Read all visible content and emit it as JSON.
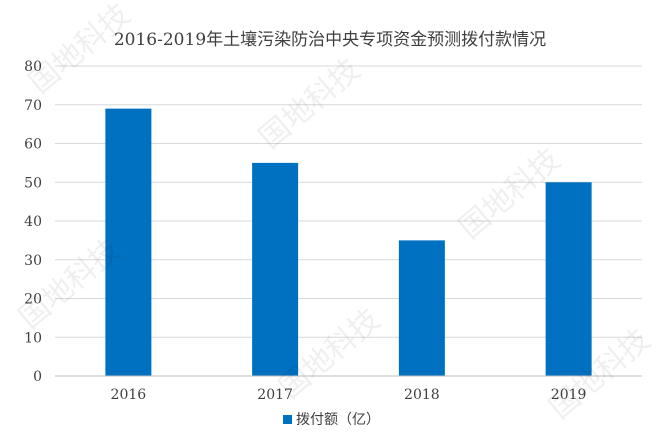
{
  "chart_data": {
    "type": "bar",
    "title": "2016-2019年土壤污染防治中央专项资金预测拨付款情况",
    "xlabel": "",
    "ylabel": "",
    "categories": [
      "2016",
      "2017",
      "2018",
      "2019"
    ],
    "series": [
      {
        "name": "拨付额（亿）",
        "values": [
          69,
          55,
          35,
          50
        ]
      }
    ],
    "ylim": [
      0,
      80
    ],
    "yticks": [
      0,
      10,
      20,
      30,
      40,
      50,
      60,
      70,
      80
    ],
    "grid": true,
    "legend_position": "bottom",
    "bar_color": "#0070c0",
    "grid_color": "#d9d9d9",
    "axis_color": "#bfbfbf",
    "text_color": "#404040"
  },
  "watermark": {
    "text": "国地科技"
  }
}
